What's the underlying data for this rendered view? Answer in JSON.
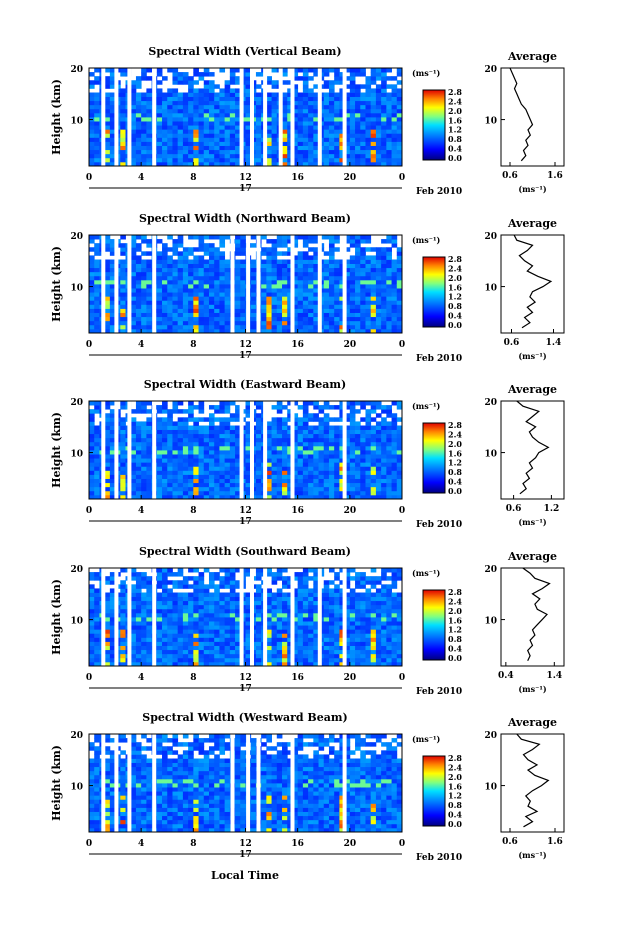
{
  "figure": {
    "xlabel": "Local Time",
    "date_label_day": "17",
    "date_label_month": "Feb 2010",
    "colorbar_unit": "(ms⁻¹)",
    "average_title": "Average",
    "average_xlabel": "(ms⁻¹)",
    "height_label": "Height (km)"
  },
  "chart_data": [
    {
      "type": "heatmap",
      "title": "Spectral Width (Vertical Beam)",
      "ylabel": "Height (km)",
      "x_ticks": [
        "0",
        "4",
        "8",
        "12",
        "16",
        "20",
        "0"
      ],
      "x_range_hours": [
        0,
        24
      ],
      "y_ticks": [
        "20",
        "10"
      ],
      "y_range_km": [
        1,
        20
      ],
      "colorbar": {
        "ticks": [
          "2.8",
          "2.4",
          "2.0",
          "1.6",
          "1.2",
          "0.8",
          "0.4",
          "0.0"
        ],
        "range": [
          0,
          3.0
        ]
      },
      "data_gaps_hours": [
        1.1,
        2.1,
        3.1,
        5.0,
        11.7,
        12.5,
        13.5,
        14.7,
        15.6,
        17.7,
        19.6
      ],
      "average_profile": {
        "x_ticks": [
          "0.6",
          "1.6"
        ],
        "x_range": [
          0.4,
          1.8
        ],
        "y_ticks": [
          "20",
          "10"
        ],
        "heights_km": [
          2,
          3,
          4,
          5,
          6,
          7,
          8,
          9,
          10,
          11,
          12,
          13,
          14,
          15,
          16,
          17,
          18,
          19,
          20
        ],
        "values": [
          0.85,
          0.95,
          0.9,
          1.0,
          0.95,
          1.05,
          1.0,
          1.1,
          1.05,
          1.0,
          0.95,
          0.85,
          0.8,
          0.75,
          0.7,
          0.75,
          0.7,
          0.65,
          0.6
        ]
      }
    },
    {
      "type": "heatmap",
      "title": "Spectral Width (Northward Beam)",
      "ylabel": "Height (km)",
      "x_ticks": [
        "0",
        "4",
        "8",
        "12",
        "16",
        "20",
        "0"
      ],
      "x_range_hours": [
        0,
        24
      ],
      "y_ticks": [
        "20",
        "10"
      ],
      "y_range_km": [
        1,
        20
      ],
      "colorbar": {
        "ticks": [
          "2.8",
          "2.4",
          "2.0",
          "1.6",
          "1.2",
          "0.8",
          "0.4",
          "0.0"
        ],
        "range": [
          0,
          3.0
        ]
      },
      "data_gaps_hours": [
        1.1,
        2.1,
        3.1,
        5.0,
        11.0,
        12.2,
        13.0,
        15.6,
        17.7,
        19.6
      ],
      "average_profile": {
        "x_ticks": [
          "0.6",
          "1.4"
        ],
        "x_range": [
          0.4,
          1.6
        ],
        "y_ticks": [
          "20",
          "10"
        ],
        "heights_km": [
          2,
          3,
          4,
          5,
          6,
          7,
          8,
          9,
          10,
          11,
          12,
          13,
          14,
          15,
          16,
          17,
          18,
          19,
          20
        ],
        "values": [
          0.8,
          0.95,
          0.85,
          1.0,
          0.9,
          1.05,
          0.95,
          1.0,
          1.2,
          1.35,
          1.1,
          0.9,
          1.0,
          0.85,
          0.75,
          0.9,
          1.0,
          0.7,
          0.65
        ]
      }
    },
    {
      "type": "heatmap",
      "title": "Spectral Width (Eastward Beam)",
      "ylabel": "Height (km)",
      "x_ticks": [
        "0",
        "4",
        "8",
        "12",
        "16",
        "20",
        "0"
      ],
      "x_range_hours": [
        0,
        24
      ],
      "y_ticks": [
        "20",
        "10"
      ],
      "y_range_km": [
        1,
        20
      ],
      "colorbar": {
        "ticks": [
          "2.8",
          "2.4",
          "2.0",
          "1.6",
          "1.2",
          "0.8",
          "0.4",
          "0.0"
        ],
        "range": [
          0,
          3.0
        ]
      },
      "data_gaps_hours": [
        1.1,
        2.1,
        3.1,
        5.0,
        11.7,
        12.5,
        13.5,
        15.6,
        19.6
      ],
      "average_profile": {
        "x_ticks": [
          "0.6",
          "1.2"
        ],
        "x_range": [
          0.4,
          1.4
        ],
        "y_ticks": [
          "20",
          "10"
        ],
        "heights_km": [
          2,
          3,
          4,
          5,
          6,
          7,
          8,
          9,
          10,
          11,
          12,
          13,
          14,
          15,
          16,
          17,
          18,
          19,
          20
        ],
        "values": [
          0.7,
          0.8,
          0.75,
          0.85,
          0.8,
          0.9,
          0.85,
          0.95,
          1.0,
          1.15,
          1.0,
          0.9,
          0.85,
          0.95,
          0.8,
          0.9,
          1.0,
          0.75,
          0.65
        ]
      }
    },
    {
      "type": "heatmap",
      "title": "Spectral Width (Southward Beam)",
      "ylabel": "Height (km)",
      "x_ticks": [
        "0",
        "4",
        "8",
        "12",
        "16",
        "20",
        "0"
      ],
      "x_range_hours": [
        0,
        24
      ],
      "y_ticks": [
        "20",
        "10"
      ],
      "y_range_km": [
        1,
        20
      ],
      "colorbar": {
        "ticks": [
          "2.8",
          "2.4",
          "2.0",
          "1.6",
          "1.2",
          "0.8",
          "0.4",
          "0.0"
        ],
        "range": [
          0,
          3.0
        ]
      },
      "data_gaps_hours": [
        1.1,
        2.1,
        3.1,
        5.0,
        11.7,
        12.5,
        13.5,
        15.6,
        17.7,
        19.6
      ],
      "average_profile": {
        "x_ticks": [
          "0.4",
          "1.4"
        ],
        "x_range": [
          0.3,
          1.6
        ],
        "y_ticks": [
          "20",
          "10"
        ],
        "heights_km": [
          2,
          3,
          4,
          5,
          6,
          7,
          8,
          9,
          10,
          11,
          12,
          13,
          14,
          15,
          16,
          17,
          18,
          19,
          20
        ],
        "values": [
          0.85,
          0.9,
          0.85,
          0.95,
          0.9,
          1.0,
          0.95,
          1.05,
          1.15,
          1.25,
          1.05,
          1.0,
          1.1,
          0.95,
          1.15,
          1.3,
          1.0,
          0.9,
          0.75
        ]
      }
    },
    {
      "type": "heatmap",
      "title": "Spectral Width (Westward Beam)",
      "ylabel": "Height (km)",
      "x_ticks": [
        "0",
        "4",
        "8",
        "12",
        "16",
        "20",
        "0"
      ],
      "x_range_hours": [
        0,
        24
      ],
      "y_ticks": [
        "20",
        "10"
      ],
      "y_range_km": [
        1,
        20
      ],
      "colorbar": {
        "ticks": [
          "2.8",
          "2.4",
          "2.0",
          "1.6",
          "1.2",
          "0.8",
          "0.4",
          "0.0"
        ],
        "range": [
          0,
          3.0
        ]
      },
      "data_gaps_hours": [
        1.1,
        2.1,
        3.1,
        5.0,
        11.0,
        12.2,
        13.0,
        15.6,
        19.6
      ],
      "average_profile": {
        "x_ticks": [
          "0.6",
          "1.6"
        ],
        "x_range": [
          0.4,
          1.8
        ],
        "y_ticks": [
          "20",
          "10"
        ],
        "heights_km": [
          2,
          3,
          4,
          5,
          6,
          7,
          8,
          9,
          10,
          11,
          12,
          13,
          14,
          15,
          16,
          17,
          18,
          19,
          20
        ],
        "values": [
          0.9,
          1.1,
          0.95,
          1.2,
          1.0,
          1.05,
          0.95,
          1.1,
          1.3,
          1.45,
          1.15,
          1.0,
          1.2,
          1.0,
          0.9,
          1.1,
          1.25,
          0.85,
          0.75
        ]
      }
    }
  ]
}
